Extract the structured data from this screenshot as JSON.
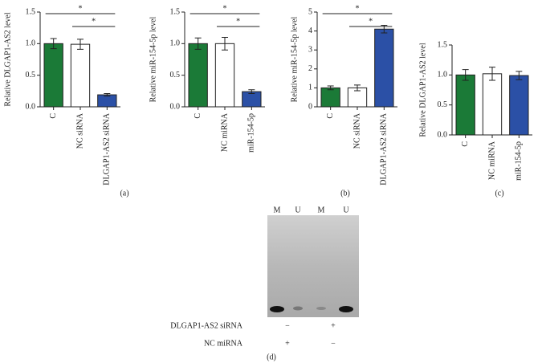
{
  "chart_data": [
    {
      "type": "bar",
      "y_label": "Relative DLGAP1-AS2 level",
      "panel": "(a)",
      "categories": [
        "C",
        "NC siRNA",
        "DLGAP1-AS2 siRNA"
      ],
      "values": [
        1.0,
        0.99,
        0.19
      ],
      "errors": [
        0.08,
        0.08,
        0.02
      ],
      "colors": [
        "#1b7a37",
        "#ffffff",
        "#2b50a6"
      ],
      "ylim": [
        0,
        1.5
      ],
      "yticks": [
        {
          "value": 0,
          "label": "0.0"
        },
        0.5,
        {
          "value": 1,
          "label": "1.0"
        },
        1.5
      ],
      "annotations": [
        "*",
        "*"
      ]
    },
    {
      "type": "bar",
      "y_label": "Relative miR-154-5p level",
      "categories": [
        "C",
        "NC miRNA",
        "miR-154-5p"
      ],
      "values": [
        1.0,
        1.0,
        0.24
      ],
      "errors": [
        0.09,
        0.1,
        0.03
      ],
      "colors": [
        "#1b7a37",
        "#ffffff",
        "#2b50a6"
      ],
      "ylim": [
        0,
        1.5
      ],
      "yticks": [
        {
          "value": 0,
          "label": "0.0"
        },
        0.5,
        {
          "value": 1,
          "label": "1.0"
        },
        1.5
      ],
      "annotations": [
        "*",
        "*"
      ]
    },
    {
      "type": "bar",
      "y_label": "Relative miR-154-5p level",
      "panel": "(b)",
      "categories": [
        "C",
        "NC siRNA",
        "DLGAP1-AS2 siRNA"
      ],
      "values": [
        1.0,
        1.0,
        4.1
      ],
      "errors": [
        0.1,
        0.15,
        0.2
      ],
      "colors": [
        "#1b7a37",
        "#ffffff",
        "#2b50a6"
      ],
      "ylim": [
        0,
        5
      ],
      "yticks": [
        0,
        1,
        2,
        3,
        4,
        5
      ],
      "annotations": [
        "*",
        "*"
      ]
    },
    {
      "type": "bar",
      "y_label": "Relative DLGAP1-AS2 level",
      "panel": "(c)",
      "categories": [
        "C",
        "NC miRNA",
        "miR-154-5p"
      ],
      "values": [
        1.0,
        1.02,
        0.99
      ],
      "errors": [
        0.09,
        0.11,
        0.07
      ],
      "colors": [
        "#1b7a37",
        "#ffffff",
        "#2b50a6"
      ],
      "ylim": [
        0,
        1.5
      ],
      "yticks": [
        {
          "value": 0,
          "label": "0.0"
        },
        0.5,
        {
          "value": 1,
          "label": "1.0"
        },
        1.5
      ]
    }
  ],
  "gel": {
    "panel": "(d)",
    "lanes": [
      "M",
      "U",
      "M",
      "U"
    ],
    "rows": [
      {
        "label": "DLGAP1-AS2 siRNA",
        "marks": [
          "−",
          "+"
        ]
      },
      {
        "label": "NC miRNA",
        "marks": [
          "+",
          "−"
        ]
      }
    ]
  }
}
